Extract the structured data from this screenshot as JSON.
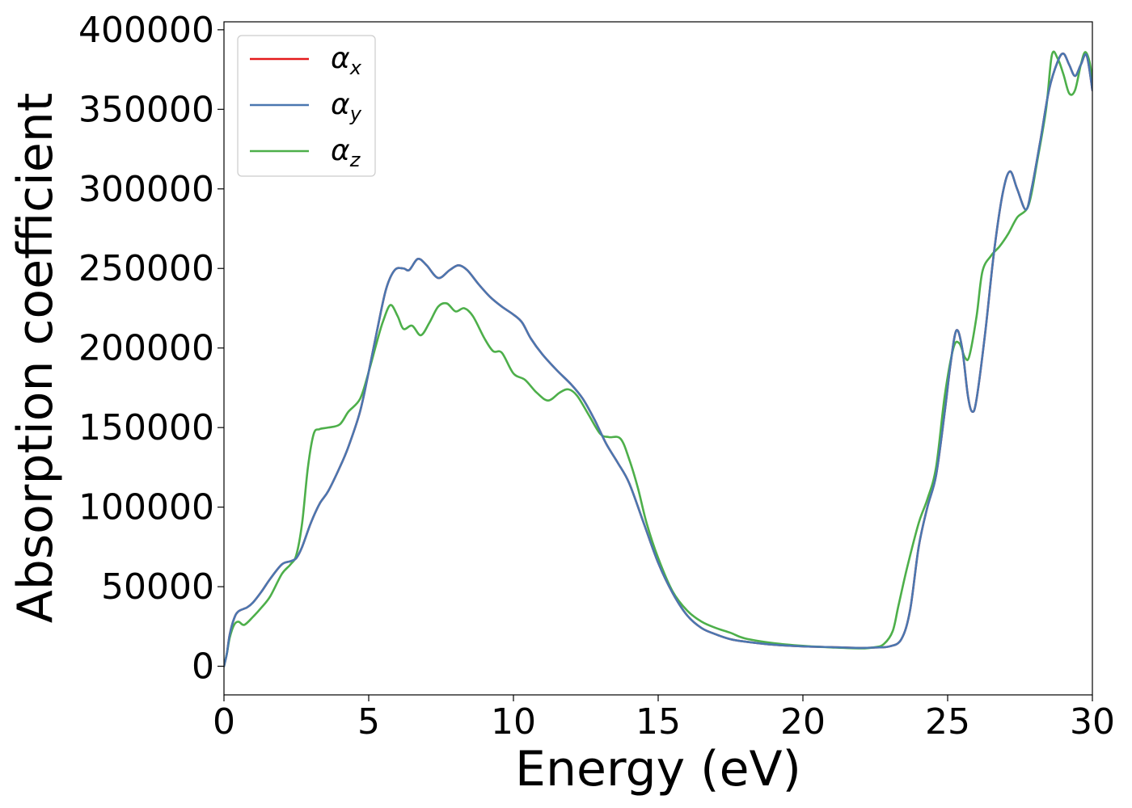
{
  "chart_data": {
    "type": "line",
    "xlabel": "Energy (eV)",
    "ylabel": "Absorption coefficient",
    "xlim": [
      0,
      30
    ],
    "ylim": [
      -18000,
      405000
    ],
    "xticks": [
      0,
      5,
      10,
      15,
      20,
      25,
      30
    ],
    "yticks": [
      0,
      50000,
      100000,
      150000,
      200000,
      250000,
      300000,
      350000,
      400000
    ],
    "grid": false,
    "legend_position": "top-left",
    "colors": {
      "x": "#e41a1c",
      "y": "#4a77b0",
      "z": "#4daf4a"
    },
    "series": [
      {
        "key": "x",
        "name": "α_x",
        "symbol": "α",
        "subscript": "x",
        "color": "#e41a1c",
        "points": [
          [
            0,
            0
          ],
          [
            0.1,
            8000
          ],
          [
            0.2,
            20000
          ],
          [
            0.35,
            30000
          ],
          [
            0.5,
            34500
          ],
          [
            0.8,
            37000
          ],
          [
            1.0,
            40000
          ],
          [
            1.3,
            47000
          ],
          [
            1.6,
            55000
          ],
          [
            2.0,
            64000
          ],
          [
            2.3,
            66000
          ],
          [
            2.5,
            68000
          ],
          [
            2.7,
            75000
          ],
          [
            3.0,
            90000
          ],
          [
            3.3,
            102000
          ],
          [
            3.6,
            110000
          ],
          [
            4.0,
            125000
          ],
          [
            4.3,
            138000
          ],
          [
            4.7,
            160000
          ],
          [
            5.0,
            185000
          ],
          [
            5.3,
            212000
          ],
          [
            5.6,
            237000
          ],
          [
            5.9,
            249000
          ],
          [
            6.2,
            250000
          ],
          [
            6.4,
            249000
          ],
          [
            6.7,
            256000
          ],
          [
            7.0,
            252000
          ],
          [
            7.4,
            244000
          ],
          [
            7.8,
            249000
          ],
          [
            8.1,
            252000
          ],
          [
            8.4,
            249000
          ],
          [
            8.8,
            240000
          ],
          [
            9.2,
            232000
          ],
          [
            9.6,
            226000
          ],
          [
            10.0,
            221000
          ],
          [
            10.3,
            216000
          ],
          [
            10.6,
            206000
          ],
          [
            11.0,
            196000
          ],
          [
            11.5,
            186000
          ],
          [
            12.0,
            177000
          ],
          [
            12.4,
            168000
          ],
          [
            12.8,
            155000
          ],
          [
            13.2,
            140000
          ],
          [
            13.6,
            128000
          ],
          [
            14.0,
            115000
          ],
          [
            14.5,
            90000
          ],
          [
            15.0,
            65000
          ],
          [
            15.5,
            46000
          ],
          [
            16.0,
            32000
          ],
          [
            16.5,
            24000
          ],
          [
            17.0,
            20000
          ],
          [
            17.5,
            17000
          ],
          [
            18.0,
            15500
          ],
          [
            19.0,
            13500
          ],
          [
            20.0,
            12500
          ],
          [
            21.0,
            12000
          ],
          [
            22.0,
            11500
          ],
          [
            22.5,
            11800
          ],
          [
            23.0,
            12500
          ],
          [
            23.4,
            17000
          ],
          [
            23.7,
            35000
          ],
          [
            24.0,
            75000
          ],
          [
            24.3,
            100000
          ],
          [
            24.6,
            120000
          ],
          [
            24.9,
            160000
          ],
          [
            25.1,
            190000
          ],
          [
            25.3,
            211000
          ],
          [
            25.5,
            200000
          ],
          [
            25.7,
            170000
          ],
          [
            25.85,
            160000
          ],
          [
            26.0,
            168000
          ],
          [
            26.3,
            210000
          ],
          [
            26.6,
            260000
          ],
          [
            26.9,
            297000
          ],
          [
            27.15,
            311000
          ],
          [
            27.4,
            300000
          ],
          [
            27.7,
            287000
          ],
          [
            27.9,
            300000
          ],
          [
            28.2,
            330000
          ],
          [
            28.5,
            362000
          ],
          [
            28.8,
            380000
          ],
          [
            29.0,
            385000
          ],
          [
            29.2,
            378000
          ],
          [
            29.4,
            371000
          ],
          [
            29.6,
            378000
          ],
          [
            29.8,
            384000
          ],
          [
            30.0,
            362000
          ]
        ]
      },
      {
        "key": "y",
        "name": "α_y",
        "symbol": "α",
        "subscript": "y",
        "color": "#4a77b0",
        "points": [
          [
            0,
            0
          ],
          [
            0.1,
            8000
          ],
          [
            0.2,
            20000
          ],
          [
            0.35,
            30000
          ],
          [
            0.5,
            34500
          ],
          [
            0.8,
            37000
          ],
          [
            1.0,
            40000
          ],
          [
            1.3,
            47000
          ],
          [
            1.6,
            55000
          ],
          [
            2.0,
            64000
          ],
          [
            2.3,
            66000
          ],
          [
            2.5,
            68000
          ],
          [
            2.7,
            75000
          ],
          [
            3.0,
            90000
          ],
          [
            3.3,
            102000
          ],
          [
            3.6,
            110000
          ],
          [
            4.0,
            125000
          ],
          [
            4.3,
            138000
          ],
          [
            4.7,
            160000
          ],
          [
            5.0,
            185000
          ],
          [
            5.3,
            212000
          ],
          [
            5.6,
            237000
          ],
          [
            5.9,
            249000
          ],
          [
            6.2,
            250000
          ],
          [
            6.4,
            249000
          ],
          [
            6.7,
            256000
          ],
          [
            7.0,
            252000
          ],
          [
            7.4,
            244000
          ],
          [
            7.8,
            249000
          ],
          [
            8.1,
            252000
          ],
          [
            8.4,
            249000
          ],
          [
            8.8,
            240000
          ],
          [
            9.2,
            232000
          ],
          [
            9.6,
            226000
          ],
          [
            10.0,
            221000
          ],
          [
            10.3,
            216000
          ],
          [
            10.6,
            206000
          ],
          [
            11.0,
            196000
          ],
          [
            11.5,
            186000
          ],
          [
            12.0,
            177000
          ],
          [
            12.4,
            168000
          ],
          [
            12.8,
            155000
          ],
          [
            13.2,
            140000
          ],
          [
            13.6,
            128000
          ],
          [
            14.0,
            115000
          ],
          [
            14.5,
            90000
          ],
          [
            15.0,
            65000
          ],
          [
            15.5,
            46000
          ],
          [
            16.0,
            32000
          ],
          [
            16.5,
            24000
          ],
          [
            17.0,
            20000
          ],
          [
            17.5,
            17000
          ],
          [
            18.0,
            15500
          ],
          [
            19.0,
            13500
          ],
          [
            20.0,
            12500
          ],
          [
            21.0,
            12000
          ],
          [
            22.0,
            11500
          ],
          [
            22.5,
            11800
          ],
          [
            23.0,
            12500
          ],
          [
            23.4,
            17000
          ],
          [
            23.7,
            35000
          ],
          [
            24.0,
            75000
          ],
          [
            24.3,
            100000
          ],
          [
            24.6,
            120000
          ],
          [
            24.9,
            160000
          ],
          [
            25.1,
            190000
          ],
          [
            25.3,
            211000
          ],
          [
            25.5,
            200000
          ],
          [
            25.7,
            170000
          ],
          [
            25.85,
            160000
          ],
          [
            26.0,
            168000
          ],
          [
            26.3,
            210000
          ],
          [
            26.6,
            260000
          ],
          [
            26.9,
            297000
          ],
          [
            27.15,
            311000
          ],
          [
            27.4,
            300000
          ],
          [
            27.7,
            287000
          ],
          [
            27.9,
            300000
          ],
          [
            28.2,
            330000
          ],
          [
            28.5,
            362000
          ],
          [
            28.8,
            380000
          ],
          [
            29.0,
            385000
          ],
          [
            29.2,
            378000
          ],
          [
            29.4,
            371000
          ],
          [
            29.6,
            378000
          ],
          [
            29.8,
            384000
          ],
          [
            30.0,
            362000
          ]
        ]
      },
      {
        "key": "z",
        "name": "α_z",
        "symbol": "α",
        "subscript": "z",
        "color": "#4daf4a",
        "points": [
          [
            0,
            0
          ],
          [
            0.1,
            8000
          ],
          [
            0.2,
            18000
          ],
          [
            0.35,
            26000
          ],
          [
            0.5,
            28000
          ],
          [
            0.7,
            26000
          ],
          [
            1.0,
            31000
          ],
          [
            1.3,
            37000
          ],
          [
            1.6,
            44000
          ],
          [
            2.0,
            58000
          ],
          [
            2.3,
            64000
          ],
          [
            2.5,
            70000
          ],
          [
            2.7,
            90000
          ],
          [
            2.9,
            125000
          ],
          [
            3.1,
            146000
          ],
          [
            3.3,
            149000
          ],
          [
            3.6,
            150000
          ],
          [
            4.0,
            152000
          ],
          [
            4.3,
            160000
          ],
          [
            4.7,
            168000
          ],
          [
            5.0,
            185000
          ],
          [
            5.3,
            205000
          ],
          [
            5.5,
            217000
          ],
          [
            5.75,
            227000
          ],
          [
            6.0,
            220000
          ],
          [
            6.2,
            212000
          ],
          [
            6.5,
            214000
          ],
          [
            6.8,
            208000
          ],
          [
            7.1,
            216000
          ],
          [
            7.4,
            226000
          ],
          [
            7.7,
            228000
          ],
          [
            8.0,
            223000
          ],
          [
            8.3,
            225000
          ],
          [
            8.6,
            220000
          ],
          [
            9.0,
            206000
          ],
          [
            9.3,
            198000
          ],
          [
            9.6,
            197000
          ],
          [
            10.0,
            184000
          ],
          [
            10.4,
            180000
          ],
          [
            10.8,
            172000
          ],
          [
            11.2,
            167000
          ],
          [
            11.6,
            172000
          ],
          [
            11.9,
            174000
          ],
          [
            12.2,
            170000
          ],
          [
            12.6,
            158000
          ],
          [
            13.0,
            146000
          ],
          [
            13.3,
            144000
          ],
          [
            13.7,
            143000
          ],
          [
            14.0,
            130000
          ],
          [
            14.3,
            112000
          ],
          [
            14.6,
            90000
          ],
          [
            15.0,
            68000
          ],
          [
            15.5,
            47000
          ],
          [
            16.0,
            35000
          ],
          [
            16.5,
            28000
          ],
          [
            17.0,
            24000
          ],
          [
            17.5,
            21000
          ],
          [
            18.0,
            17500
          ],
          [
            19.0,
            14500
          ],
          [
            20.0,
            12800
          ],
          [
            21.0,
            11800
          ],
          [
            22.0,
            11200
          ],
          [
            22.5,
            12000
          ],
          [
            22.8,
            14000
          ],
          [
            23.1,
            22000
          ],
          [
            23.3,
            38000
          ],
          [
            23.6,
            62000
          ],
          [
            24.0,
            90000
          ],
          [
            24.3,
            105000
          ],
          [
            24.6,
            125000
          ],
          [
            24.9,
            170000
          ],
          [
            25.2,
            200000
          ],
          [
            25.4,
            203000
          ],
          [
            25.6,
            194000
          ],
          [
            25.75,
            195000
          ],
          [
            26.0,
            220000
          ],
          [
            26.2,
            248000
          ],
          [
            26.5,
            258000
          ],
          [
            26.8,
            264000
          ],
          [
            27.1,
            272000
          ],
          [
            27.4,
            282000
          ],
          [
            27.8,
            290000
          ],
          [
            28.1,
            318000
          ],
          [
            28.4,
            350000
          ],
          [
            28.6,
            384000
          ],
          [
            28.8,
            382000
          ],
          [
            29.0,
            372000
          ],
          [
            29.2,
            360000
          ],
          [
            29.4,
            362000
          ],
          [
            29.6,
            378000
          ],
          [
            29.75,
            386000
          ],
          [
            29.9,
            380000
          ],
          [
            30.0,
            368000
          ]
        ]
      }
    ]
  }
}
